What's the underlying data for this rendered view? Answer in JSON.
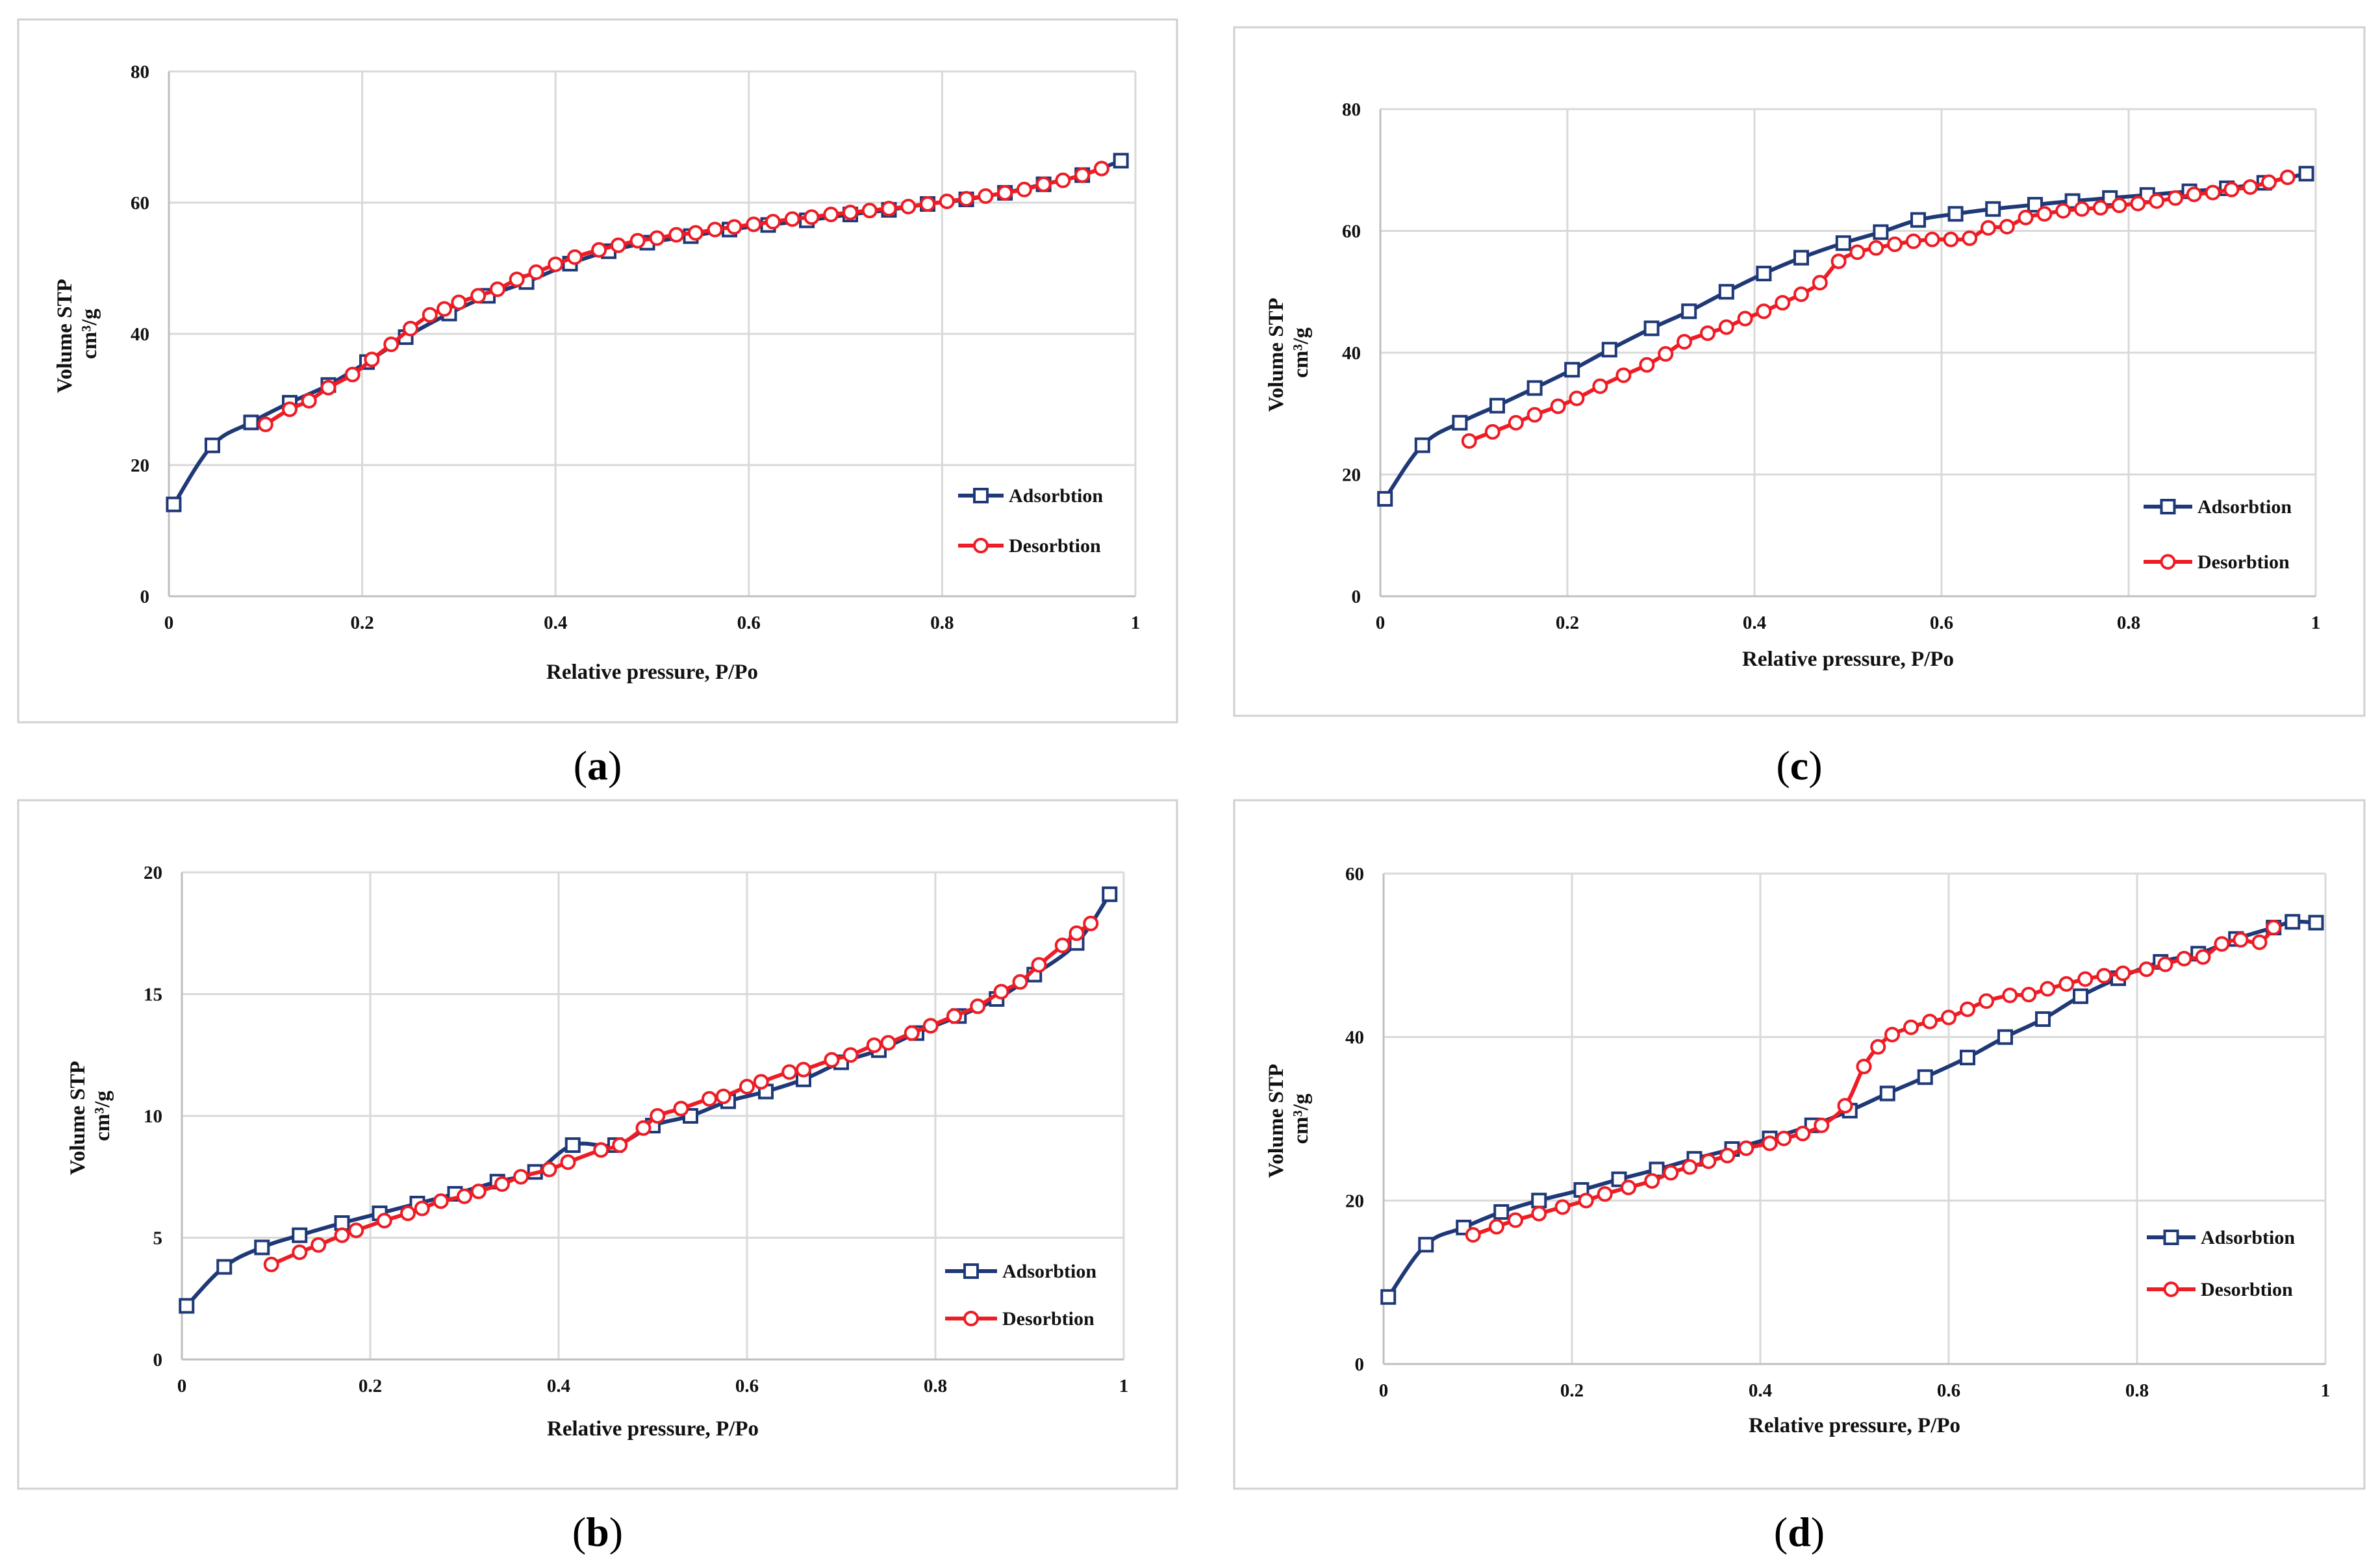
{
  "colors": {
    "adsorption": "#1f3877",
    "desorption": "#ee1c25",
    "grid": "#d9d9d9",
    "frame": "#d0d0d0"
  },
  "chart_data": [
    {
      "type": "line",
      "panel": "a",
      "title": "",
      "xlabel": "Relative pressure,  P/Po",
      "ylabel_line1": "Volume STP",
      "ylabel_line2": "cm³/g",
      "xlim": [
        0,
        1
      ],
      "ylim": [
        0,
        80
      ],
      "xticks": [
        0,
        0.2,
        0.4,
        0.6,
        0.8,
        1
      ],
      "xtick_labels": [
        "0",
        "0.2",
        "0.4",
        "0.6",
        "0.8",
        "1"
      ],
      "yticks": [
        0,
        20,
        40,
        60,
        80
      ],
      "ytick_labels": [
        "0",
        "20",
        "40",
        "60",
        "80"
      ],
      "grid": true,
      "legend": "right",
      "series": [
        {
          "name": "Adsorbtion",
          "marker": "square",
          "x": [
            0.005,
            0.045,
            0.085,
            0.125,
            0.165,
            0.205,
            0.245,
            0.29,
            0.33,
            0.37,
            0.415,
            0.455,
            0.495,
            0.54,
            0.58,
            0.62,
            0.66,
            0.705,
            0.745,
            0.785,
            0.825,
            0.865,
            0.905,
            0.945,
            0.985
          ],
          "y": [
            14,
            23,
            26.5,
            29.5,
            32.2,
            35.7,
            39.5,
            43.1,
            45.8,
            47.9,
            50.7,
            52.6,
            53.9,
            54.9,
            55.9,
            56.6,
            57.3,
            58.2,
            58.9,
            59.8,
            60.5,
            61.5,
            62.8,
            64.2,
            66.4
          ]
        },
        {
          "name": "Desorbtion",
          "marker": "circle",
          "x": [
            0.1,
            0.125,
            0.145,
            0.165,
            0.19,
            0.21,
            0.23,
            0.25,
            0.27,
            0.285,
            0.3,
            0.32,
            0.34,
            0.36,
            0.38,
            0.4,
            0.42,
            0.445,
            0.465,
            0.485,
            0.505,
            0.525,
            0.545,
            0.565,
            0.585,
            0.605,
            0.625,
            0.645,
            0.665,
            0.685,
            0.705,
            0.725,
            0.745,
            0.765,
            0.785,
            0.805,
            0.825,
            0.845,
            0.865,
            0.885,
            0.905,
            0.925,
            0.945,
            0.965
          ],
          "y": [
            26.2,
            28.5,
            29.8,
            31.8,
            33.8,
            36.1,
            38.4,
            40.8,
            42.9,
            43.8,
            44.8,
            45.8,
            46.8,
            48.3,
            49.4,
            50.6,
            51.7,
            52.8,
            53.5,
            54.2,
            54.6,
            55.1,
            55.4,
            55.9,
            56.3,
            56.7,
            57.1,
            57.5,
            57.8,
            58.2,
            58.5,
            58.8,
            59.1,
            59.4,
            59.8,
            60.2,
            60.6,
            61.0,
            61.5,
            62.0,
            62.8,
            63.4,
            64.2,
            65.2
          ]
        }
      ]
    },
    {
      "type": "line",
      "panel": "c",
      "title": "",
      "xlabel": "Relative pressure,  P/Po",
      "ylabel_line1": "Volume STP",
      "ylabel_line2": "cm³/g",
      "xlim": [
        0,
        1
      ],
      "ylim": [
        0,
        80
      ],
      "xticks": [
        0,
        0.2,
        0.4,
        0.6,
        0.8,
        1
      ],
      "xtick_labels": [
        "0",
        "0.2",
        "0.4",
        "0.6",
        "0.8",
        "1"
      ],
      "yticks": [
        0,
        20,
        40,
        60,
        80
      ],
      "ytick_labels": [
        "0",
        "20",
        "40",
        "60",
        "80"
      ],
      "grid": true,
      "legend": "right",
      "series": [
        {
          "name": "Adsorbtion",
          "marker": "square",
          "x": [
            0.005,
            0.045,
            0.085,
            0.125,
            0.165,
            0.205,
            0.245,
            0.29,
            0.33,
            0.37,
            0.41,
            0.45,
            0.495,
            0.535,
            0.575,
            0.615,
            0.655,
            0.7,
            0.74,
            0.78,
            0.82,
            0.865,
            0.905,
            0.945,
            0.99
          ],
          "y": [
            16,
            24.8,
            28.5,
            31.3,
            34.2,
            37.2,
            40.5,
            44,
            46.8,
            50,
            53,
            55.6,
            58,
            59.8,
            61.8,
            62.8,
            63.6,
            64.3,
            64.9,
            65.4,
            65.9,
            66.5,
            67,
            67.9,
            69.4
          ]
        },
        {
          "name": "Desorbtion",
          "marker": "circle",
          "x": [
            0.095,
            0.12,
            0.145,
            0.165,
            0.19,
            0.21,
            0.235,
            0.26,
            0.285,
            0.305,
            0.325,
            0.35,
            0.37,
            0.39,
            0.41,
            0.43,
            0.45,
            0.47,
            0.49,
            0.51,
            0.53,
            0.55,
            0.57,
            0.59,
            0.61,
            0.63,
            0.65,
            0.67,
            0.69,
            0.71,
            0.73,
            0.75,
            0.77,
            0.79,
            0.81,
            0.83,
            0.85,
            0.87,
            0.89,
            0.91,
            0.93,
            0.95,
            0.97
          ],
          "y": [
            25.5,
            27,
            28.5,
            29.8,
            31.2,
            32.5,
            34.5,
            36.3,
            38,
            39.8,
            41.8,
            43.2,
            44.2,
            45.6,
            46.8,
            48.2,
            49.6,
            51.5,
            55,
            56.5,
            57.2,
            57.8,
            58.3,
            58.6,
            58.6,
            58.8,
            60.5,
            60.7,
            62.2,
            62.8,
            63.3,
            63.6,
            63.8,
            64.2,
            64.5,
            64.9,
            65.4,
            66,
            66.3,
            66.8,
            67.2,
            68,
            68.8
          ]
        }
      ]
    },
    {
      "type": "line",
      "panel": "b",
      "title": "",
      "xlabel": "Relative pressure,  P/Po",
      "ylabel_line1": "Volume STP",
      "ylabel_line2": "cm³/g",
      "xlim": [
        0,
        1
      ],
      "ylim": [
        0,
        20
      ],
      "xticks": [
        0,
        0.2,
        0.4,
        0.6,
        0.8,
        1
      ],
      "xtick_labels": [
        "0",
        "0.2",
        "0.4",
        "0.6",
        "0.8",
        "1"
      ],
      "yticks": [
        0,
        5,
        10,
        15,
        20
      ],
      "ytick_labels": [
        "0",
        "5",
        "10",
        "15",
        "20"
      ],
      "grid": true,
      "legend": "right",
      "series": [
        {
          "name": "Adsorbtion",
          "marker": "square",
          "x": [
            0.005,
            0.045,
            0.085,
            0.125,
            0.17,
            0.21,
            0.25,
            0.29,
            0.335,
            0.375,
            0.415,
            0.46,
            0.5,
            0.54,
            0.58,
            0.62,
            0.66,
            0.7,
            0.74,
            0.78,
            0.825,
            0.865,
            0.905,
            0.95,
            0.985
          ],
          "y": [
            2.2,
            3.8,
            4.6,
            5.1,
            5.6,
            6,
            6.4,
            6.8,
            7.3,
            7.7,
            8.8,
            8.8,
            9.6,
            10,
            10.6,
            11,
            11.5,
            12.2,
            12.7,
            13.4,
            14.1,
            14.8,
            15.8,
            17.1,
            19.1
          ]
        },
        {
          "name": "Desorbtion",
          "marker": "circle",
          "x": [
            0.095,
            0.125,
            0.145,
            0.17,
            0.185,
            0.215,
            0.24,
            0.255,
            0.275,
            0.3,
            0.315,
            0.34,
            0.36,
            0.39,
            0.41,
            0.445,
            0.465,
            0.49,
            0.505,
            0.53,
            0.56,
            0.575,
            0.6,
            0.615,
            0.645,
            0.66,
            0.69,
            0.71,
            0.735,
            0.75,
            0.775,
            0.795,
            0.82,
            0.845,
            0.87,
            0.89,
            0.91,
            0.935,
            0.95,
            0.965
          ],
          "y": [
            3.9,
            4.4,
            4.7,
            5.1,
            5.3,
            5.7,
            6,
            6.2,
            6.5,
            6.7,
            6.9,
            7.2,
            7.5,
            7.8,
            8.1,
            8.6,
            8.8,
            9.5,
            10,
            10.3,
            10.7,
            10.8,
            11.2,
            11.4,
            11.8,
            11.9,
            12.3,
            12.5,
            12.9,
            13,
            13.4,
            13.7,
            14.1,
            14.5,
            15.1,
            15.5,
            16.2,
            17,
            17.5,
            17.9
          ]
        }
      ]
    },
    {
      "type": "line",
      "panel": "d",
      "title": "",
      "xlabel": "Relative pressure,  P/Po",
      "ylabel_line1": "Volume STP",
      "ylabel_line2": "cm³/g",
      "xlim": [
        0,
        1
      ],
      "ylim": [
        0,
        60
      ],
      "xticks": [
        0,
        0.2,
        0.4,
        0.6,
        0.8,
        1
      ],
      "xtick_labels": [
        "0",
        "0.2",
        "0.4",
        "0.6",
        "0.8",
        "1"
      ],
      "yticks": [
        0,
        20,
        40,
        60
      ],
      "ytick_labels": [
        "0",
        "20",
        "40",
        "60"
      ],
      "grid": true,
      "legend": "right",
      "series": [
        {
          "name": "Adsorbtion",
          "marker": "square",
          "x": [
            0.005,
            0.045,
            0.085,
            0.125,
            0.165,
            0.21,
            0.25,
            0.29,
            0.33,
            0.37,
            0.41,
            0.455,
            0.495,
            0.535,
            0.575,
            0.62,
            0.66,
            0.7,
            0.74,
            0.78,
            0.825,
            0.865,
            0.905,
            0.945,
            0.965,
            0.99
          ],
          "y": [
            8.2,
            14.6,
            16.7,
            18.6,
            20,
            21.3,
            22.6,
            23.8,
            25.1,
            26.3,
            27.6,
            29.2,
            31,
            33.1,
            35.1,
            37.5,
            40,
            42.2,
            45,
            47.2,
            49.2,
            50.2,
            52,
            53.4,
            54.1,
            54
          ]
        },
        {
          "name": "Desorbtion",
          "marker": "circle",
          "x": [
            0.095,
            0.12,
            0.14,
            0.165,
            0.19,
            0.215,
            0.235,
            0.26,
            0.285,
            0.305,
            0.325,
            0.345,
            0.365,
            0.385,
            0.41,
            0.425,
            0.445,
            0.465,
            0.49,
            0.51,
            0.525,
            0.54,
            0.56,
            0.58,
            0.6,
            0.62,
            0.64,
            0.665,
            0.685,
            0.705,
            0.725,
            0.745,
            0.765,
            0.785,
            0.81,
            0.83,
            0.85,
            0.87,
            0.89,
            0.91,
            0.93,
            0.945
          ],
          "y": [
            15.8,
            16.8,
            17.6,
            18.4,
            19.2,
            20,
            20.8,
            21.6,
            22.4,
            23.4,
            24.1,
            24.8,
            25.5,
            26.4,
            27,
            27.6,
            28.2,
            29.2,
            31.6,
            36.4,
            38.8,
            40.3,
            41.2,
            41.9,
            42.4,
            43.4,
            44.4,
            45.1,
            45.2,
            45.9,
            46.5,
            47.1,
            47.5,
            47.8,
            48.3,
            48.9,
            49.6,
            49.8,
            51.4,
            51.9,
            51.6,
            53.4
          ]
        }
      ]
    }
  ],
  "panel_labels": [
    {
      "open": "(",
      "letter": "a",
      "close": ")"
    },
    {
      "open": "(",
      "letter": "c",
      "close": ")"
    },
    {
      "open": "(",
      "letter": "b",
      "close": ")"
    },
    {
      "open": "(",
      "letter": "d",
      "close": ")"
    }
  ]
}
